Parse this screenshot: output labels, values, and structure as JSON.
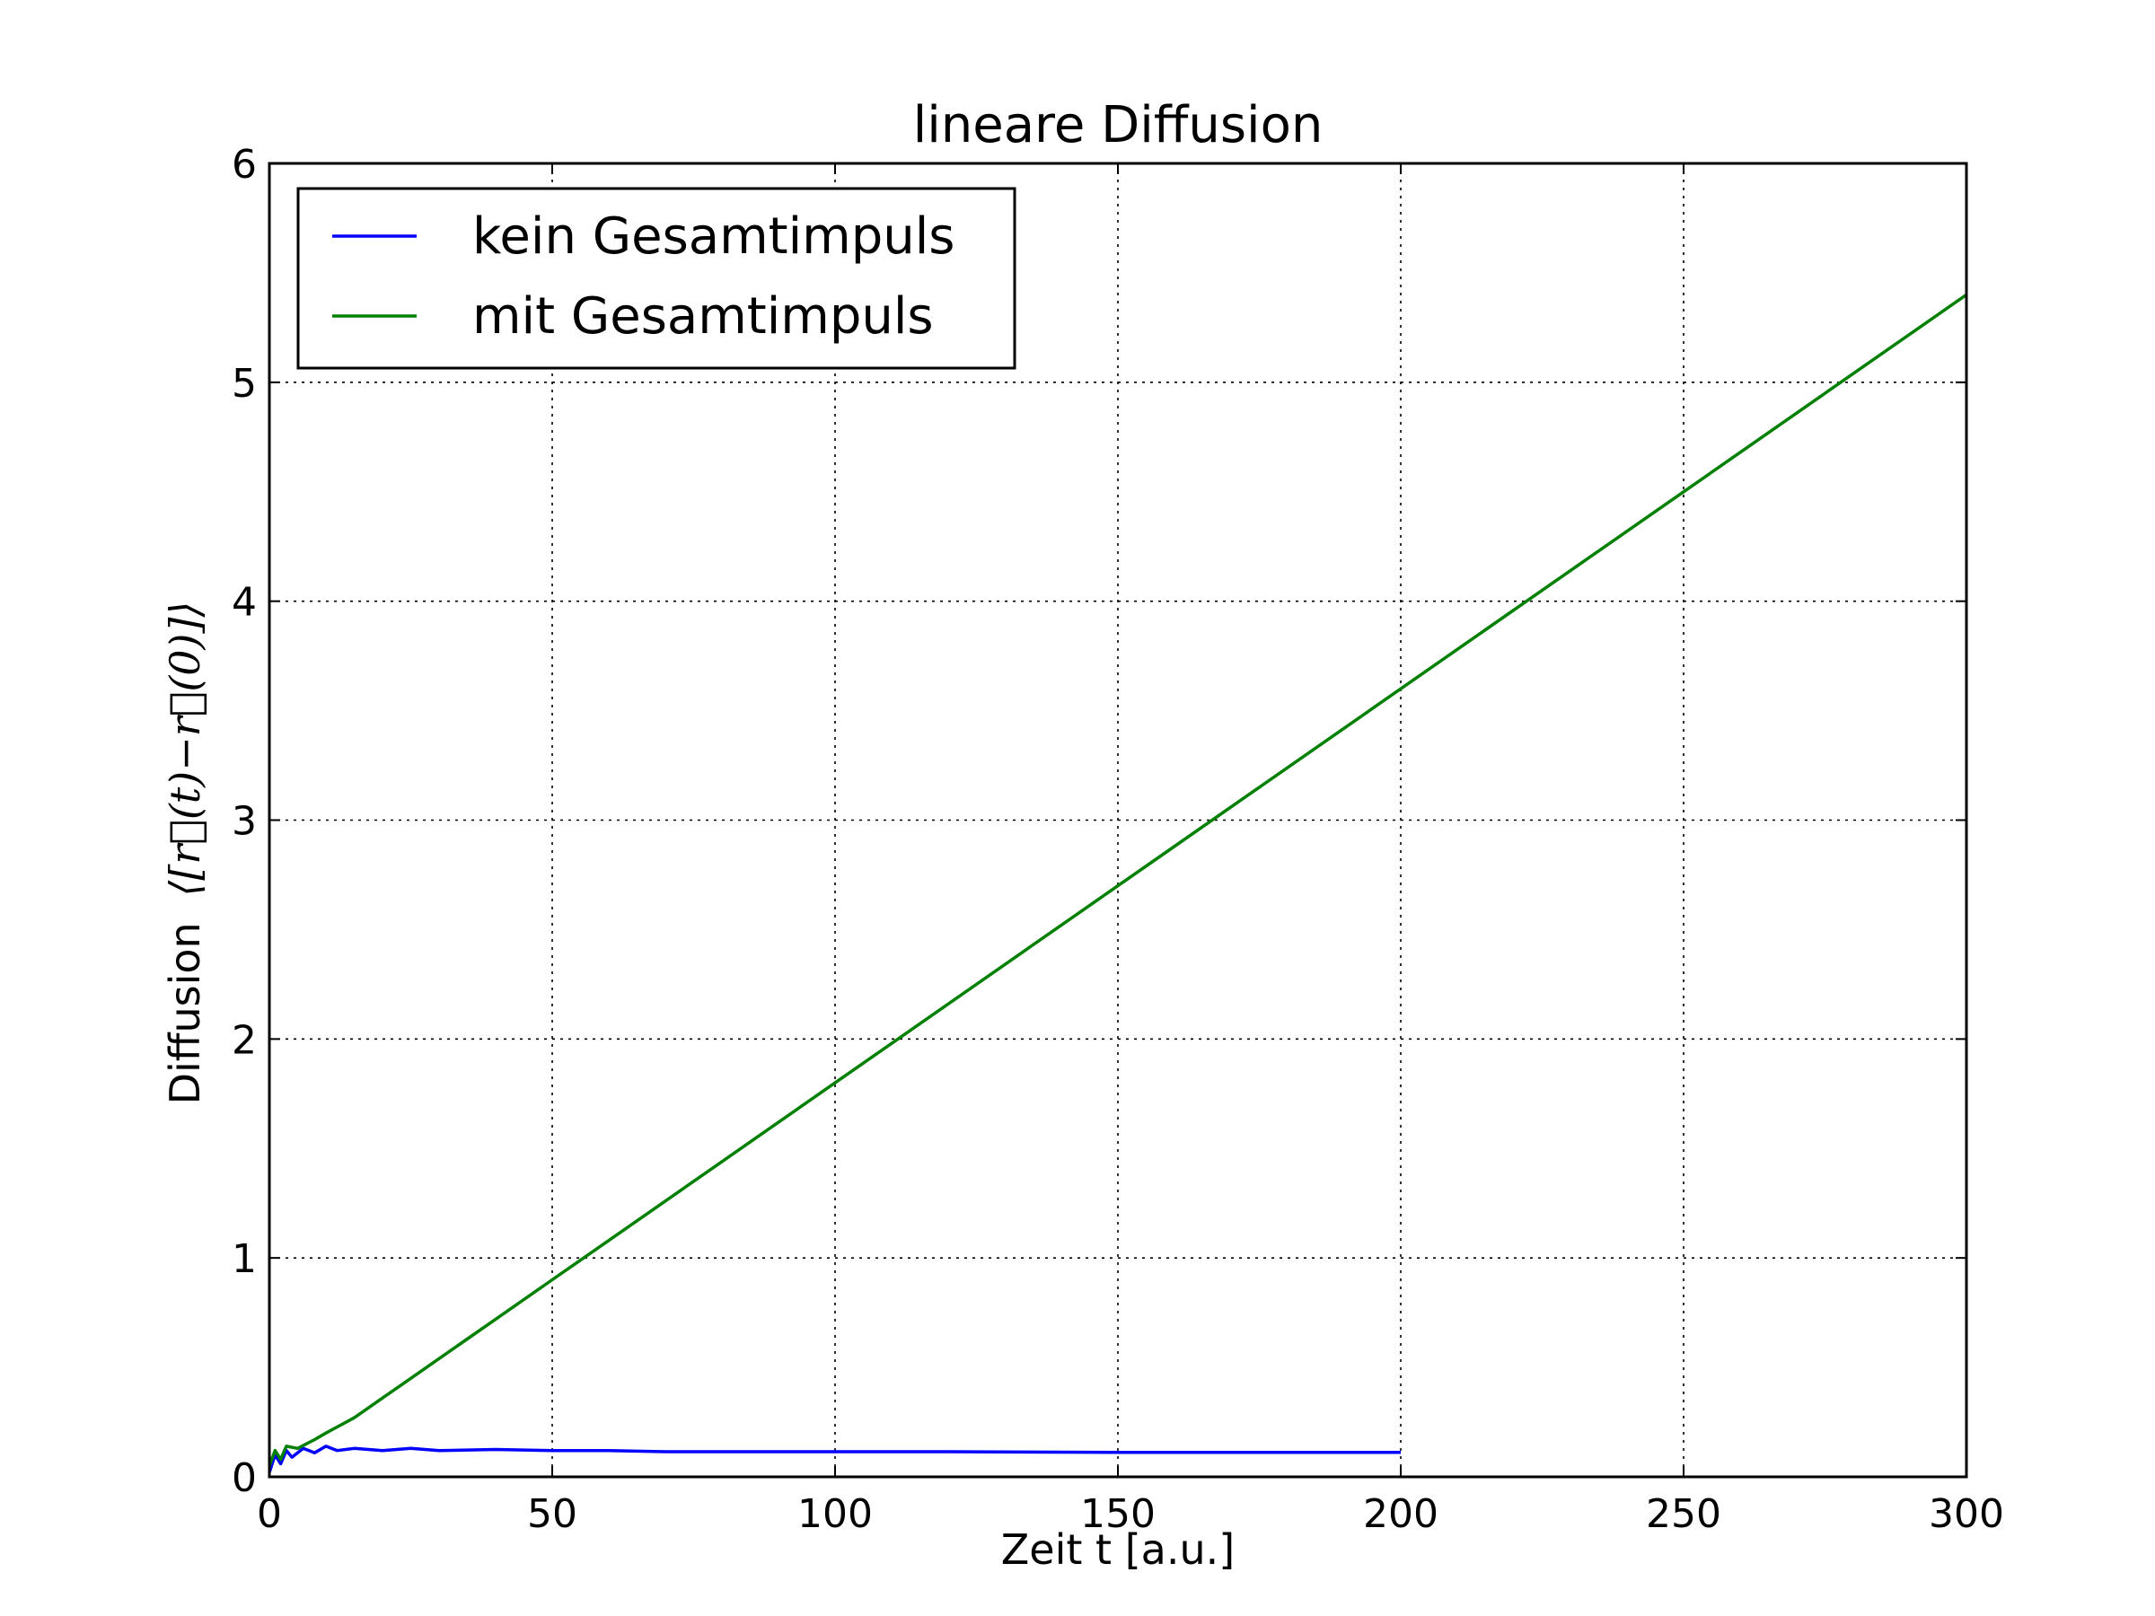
{
  "chart_data": {
    "type": "line",
    "title": "lineare Diffusion",
    "xlabel": "Zeit t [a.u.]",
    "ylabel_text": "Diffusion",
    "ylabel_math": "⟨[r⃗(t)−r⃗(0)]⟩",
    "xlim": [
      0,
      300
    ],
    "ylim": [
      0,
      6
    ],
    "xticks": [
      0,
      50,
      100,
      150,
      200,
      250,
      300
    ],
    "yticks": [
      0,
      1,
      2,
      3,
      4,
      5,
      6
    ],
    "grid": true,
    "legend_position": "top-left",
    "series": [
      {
        "name": "kein Gesamtimpuls",
        "color": "#0000ff",
        "x": [
          0,
          1,
          2,
          3,
          4,
          6,
          8,
          10,
          12,
          15,
          20,
          25,
          30,
          40,
          50,
          60,
          70,
          80,
          100,
          120,
          150,
          180,
          200
        ],
        "y": [
          0.02,
          0.1,
          0.06,
          0.12,
          0.09,
          0.13,
          0.11,
          0.14,
          0.12,
          0.13,
          0.12,
          0.13,
          0.12,
          0.125,
          0.12,
          0.12,
          0.115,
          0.115,
          0.115,
          0.115,
          0.112,
          0.112,
          0.112
        ]
      },
      {
        "name": "mit Gesamtimpuls",
        "color": "#008000",
        "x": [
          0,
          1,
          2,
          3,
          5,
          8,
          10,
          15,
          20,
          25,
          30,
          40,
          50,
          60,
          80,
          100,
          150,
          200,
          250,
          300
        ],
        "y": [
          0.05,
          0.12,
          0.08,
          0.14,
          0.13,
          0.17,
          0.2,
          0.27,
          0.36,
          0.45,
          0.54,
          0.72,
          0.9,
          1.08,
          1.44,
          1.8,
          2.7,
          3.6,
          4.5,
          5.4
        ]
      }
    ]
  }
}
